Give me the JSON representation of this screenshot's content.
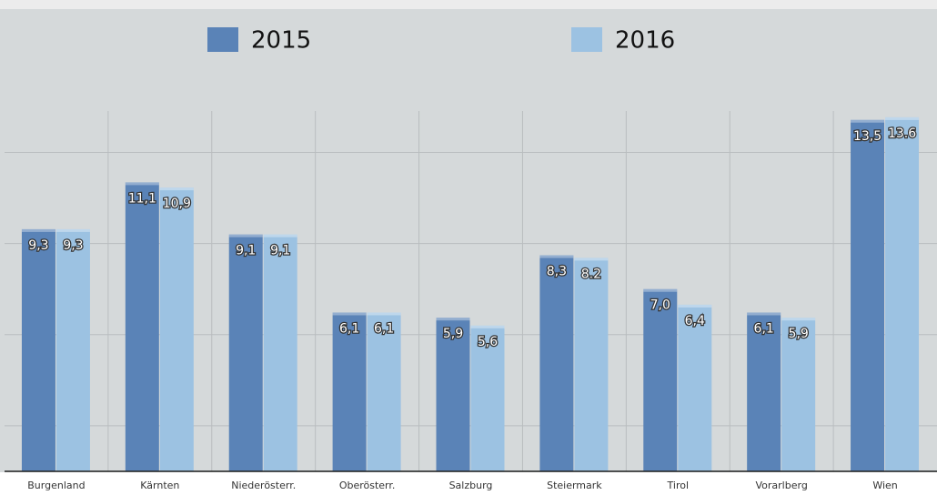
{
  "chart_data": {
    "type": "bar",
    "categories": [
      "Burgenland",
      "Kärnten",
      "Niederösterr.",
      "Oberösterr.",
      "Salzburg",
      "Steiermark",
      "Tirol",
      "Vorarlberg",
      "Wien"
    ],
    "series": [
      {
        "name": "2015",
        "color": "#5a83b7",
        "values": [
          9.3,
          11.1,
          9.1,
          6.1,
          5.9,
          8.3,
          7.0,
          6.1,
          13.5
        ],
        "value_labels": [
          "9,3",
          "11,1",
          "9,1",
          "6,1",
          "5,9",
          "8,3",
          "7,0",
          "6,1",
          "13,5"
        ]
      },
      {
        "name": "2016",
        "color": "#9cc2e2",
        "values": [
          9.3,
          10.9,
          9.1,
          6.1,
          5.6,
          8.2,
          6.4,
          5.9,
          13.6
        ],
        "value_labels": [
          "9,3",
          "10,9",
          "9,1",
          "6,1",
          "5,6",
          "8.2",
          "6,4",
          "5,9",
          "13.6"
        ]
      }
    ],
    "ylim": [
      0,
      18
    ],
    "yticks": [
      1.75,
      5.25,
      8.75,
      12.25
    ],
    "grid": true,
    "legend": "top"
  }
}
